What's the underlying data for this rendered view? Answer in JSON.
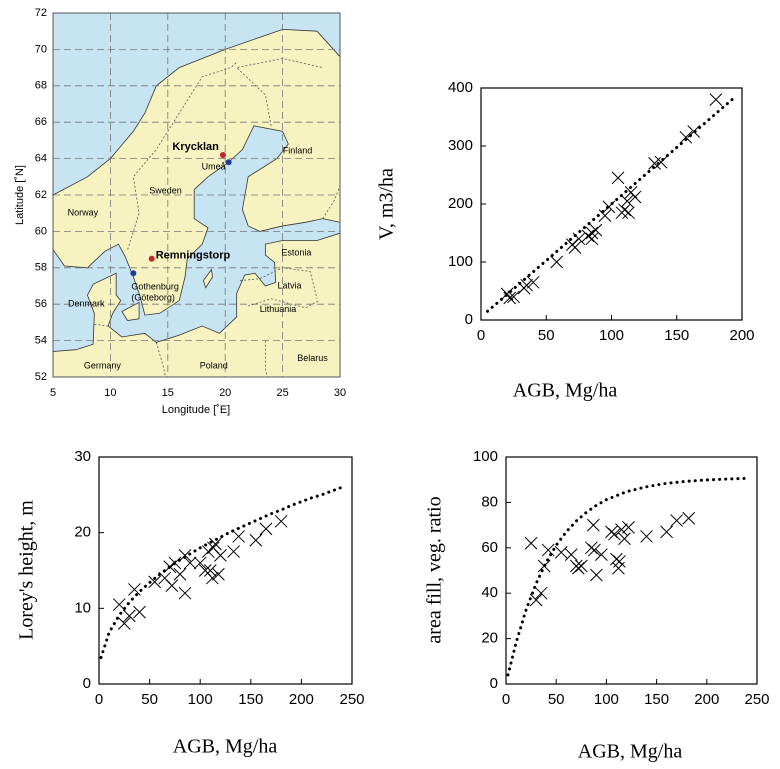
{
  "chart_data": [
    {
      "type": "map",
      "xlim": [
        5,
        30
      ],
      "ylim": [
        52,
        72
      ],
      "xticks": [
        5,
        10,
        15,
        20,
        25,
        30
      ],
      "yticks": [
        52,
        54,
        56,
        58,
        60,
        62,
        64,
        66,
        68,
        70,
        72
      ],
      "x_label": "Longitude [˚E]",
      "y_label": "Latitude [˚N]",
      "grid": true,
      "regions": [
        "Norway",
        "Sweden",
        "Finland",
        "Estonia",
        "Latvia",
        "Lithuania",
        "Denmark",
        "Germany",
        "Poland",
        "Belarus"
      ],
      "places": [
        {
          "name": "Krycklan",
          "lon": 19.8,
          "lat": 64.2,
          "color": "#c0282d"
        },
        {
          "name": "Umeå",
          "lon": 20.3,
          "lat": 63.8,
          "color": "#1f3d99"
        },
        {
          "name": "Remningstorp",
          "lon": 13.6,
          "lat": 58.5,
          "color": "#c0282d"
        },
        {
          "name": "Gothenburg",
          "alt_name": "(Göteborg)",
          "lon": 12.0,
          "lat": 57.7,
          "color": "#1f3d99"
        }
      ]
    },
    {
      "type": "scatter",
      "x_label": "AGB, Mg/ha",
      "y_label": "V, m3/ha",
      "xlim": [
        0,
        200
      ],
      "ylim": [
        0,
        400
      ],
      "xticks": [
        0,
        50,
        100,
        150,
        200
      ],
      "yticks": [
        0,
        100,
        200,
        300,
        400
      ],
      "series": [
        {
          "marker": "x",
          "color": "#000000",
          "x": [
            180,
            163,
            157,
            138,
            133,
            118,
            115,
            112,
            110,
            108,
            113,
            105,
            98,
            95,
            88,
            85,
            85,
            82,
            75,
            72,
            70,
            58,
            40,
            35,
            33,
            25,
            22,
            20
          ],
          "values": [
            380,
            325,
            315,
            272,
            270,
            212,
            220,
            205,
            190,
            185,
            185,
            245,
            195,
            180,
            155,
            140,
            150,
            145,
            140,
            125,
            130,
            100,
            65,
            60,
            55,
            40,
            38,
            45
          ]
        },
        {
          "marker": "dotted-line",
          "color": "#000000",
          "x": [
            5,
            20,
            40,
            60,
            80,
            100,
            120,
            140,
            160,
            180,
            195
          ],
          "values": [
            15,
            44,
            83,
            122,
            161,
            200,
            239,
            278,
            317,
            356,
            385
          ]
        }
      ]
    },
    {
      "type": "scatter",
      "x_label": "AGB, Mg/ha",
      "y_label": "Lorey's height, m",
      "xlim": [
        0,
        250
      ],
      "ylim": [
        0,
        30
      ],
      "xticks": [
        0,
        50,
        100,
        150,
        200,
        250
      ],
      "yticks": [
        0,
        10,
        20,
        30
      ],
      "series": [
        {
          "marker": "x",
          "color": "#000000",
          "x": [
            20,
            25,
            30,
            35,
            40,
            55,
            65,
            70,
            72,
            75,
            80,
            85,
            85,
            90,
            100,
            105,
            108,
            110,
            112,
            113,
            115,
            118,
            120,
            133,
            138,
            155,
            165,
            180
          ],
          "values": [
            10.5,
            8,
            9,
            12.5,
            9.5,
            13.5,
            14,
            15.5,
            13,
            16,
            14.5,
            12,
            17,
            16,
            16,
            15,
            17.5,
            15,
            14,
            18,
            18.5,
            14.5,
            17,
            17.5,
            19.5,
            19,
            20.5,
            21.5
          ]
        },
        {
          "marker": "dotted-line",
          "color": "#000000",
          "x": [
            2,
            10,
            20,
            30,
            40,
            50,
            60,
            70,
            80,
            90,
            100,
            110,
            120,
            130,
            140,
            150,
            160,
            170,
            180,
            190,
            200,
            210,
            220,
            230,
            240
          ],
          "values": [
            3.5,
            6.8,
            9.1,
            10.8,
            12.2,
            13.4,
            14.5,
            15.5,
            16.4,
            17.2,
            18.0,
            18.7,
            19.4,
            20.1,
            20.7,
            21.3,
            21.9,
            22.5,
            23.0,
            23.6,
            24.1,
            24.6,
            25.0,
            25.5,
            26.0
          ]
        }
      ]
    },
    {
      "type": "scatter",
      "x_label": "AGB, Mg/ha",
      "y_label": "area fill, veg. ratio",
      "xlim": [
        0,
        250
      ],
      "ylim": [
        0,
        100
      ],
      "xticks": [
        0,
        50,
        100,
        150,
        200,
        250
      ],
      "yticks": [
        0,
        20,
        40,
        60,
        80,
        100
      ],
      "series": [
        {
          "marker": "x",
          "color": "#000000",
          "x": [
            25,
            30,
            35,
            38,
            42,
            55,
            65,
            70,
            72,
            75,
            85,
            87,
            88,
            90,
            95,
            105,
            108,
            110,
            112,
            113,
            115,
            118,
            122,
            140,
            160,
            170,
            182
          ],
          "values": [
            62,
            37,
            40,
            52,
            59,
            58,
            57,
            52,
            51,
            52,
            60,
            70,
            59,
            48,
            57,
            67,
            66,
            55,
            51,
            54,
            68,
            64,
            69,
            65,
            67,
            72,
            73
          ]
        },
        {
          "marker": "dotted-line",
          "color": "#000000",
          "x": [
            2,
            10,
            20,
            30,
            40,
            50,
            60,
            70,
            80,
            90,
            100,
            120,
            140,
            160,
            180,
            200,
            220,
            240
          ],
          "values": [
            4.0,
            18.1,
            32.7,
            44.3,
            53.6,
            61.1,
            67.0,
            71.8,
            75.6,
            78.7,
            81.2,
            84.7,
            86.9,
            88.4,
            89.3,
            89.9,
            90.3,
            90.6
          ]
        }
      ]
    }
  ]
}
